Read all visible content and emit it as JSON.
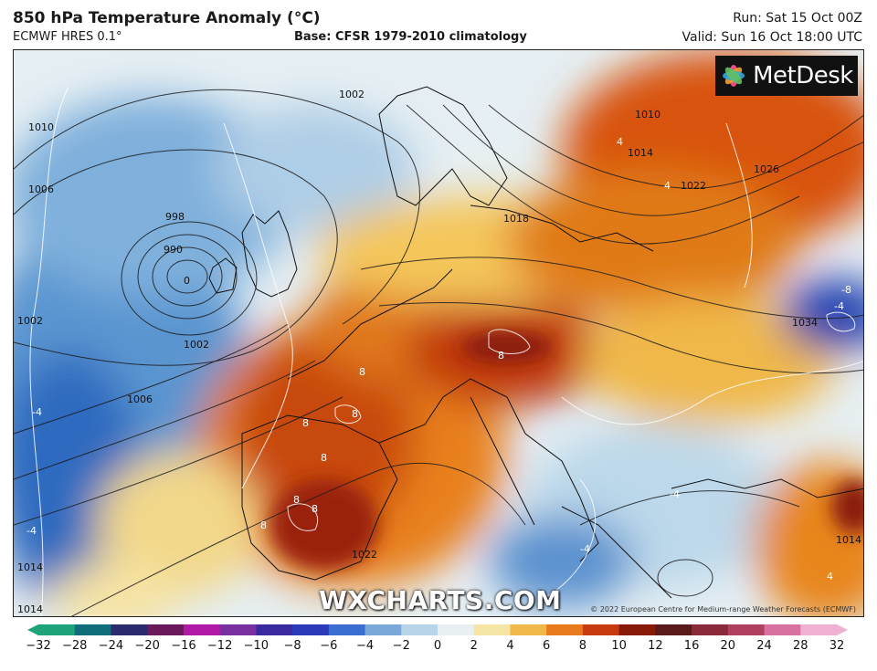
{
  "header": {
    "title": "850 hPa Temperature Anomaly (°C)",
    "model": "ECMWF HRES 0.1°",
    "base": "Base: CFSR 1979-2010 climatology",
    "run": "Run: Sat 15 Oct 00Z",
    "valid": "Valid: Sun 16 Oct 18:00 UTC"
  },
  "branding": {
    "logo_text": "MetDesk",
    "watermark": "WXCHARTS.COM",
    "copyright": "© 2022 European Centre for Medium-range Weather Forecasts (ECMWF)"
  },
  "map": {
    "region": "Europe and North Atlantic",
    "isobar_labels": [
      "998",
      "1002",
      "990",
      "1006",
      "1002",
      "1006",
      "1002",
      "1010",
      "1010",
      "1014",
      "1018",
      "1022",
      "1026",
      "1034",
      "1014",
      "1014",
      "1022",
      "1014"
    ],
    "anomaly_labels": [
      "8",
      "8",
      "8",
      "8",
      "8",
      "8",
      "8",
      "8",
      "-8",
      "-4",
      "-4",
      "-4",
      "-4",
      "-4",
      "4",
      "4",
      "4"
    ],
    "low_center": "0"
  },
  "colorbar": {
    "ticks": [
      "−32",
      "−28",
      "−24",
      "−20",
      "−16",
      "−12",
      "−10",
      "−8",
      "−6",
      "−4",
      "−2",
      "0",
      "2",
      "4",
      "6",
      "8",
      "10",
      "12",
      "16",
      "20",
      "24",
      "28",
      "32"
    ],
    "colors": [
      "#1ea37a",
      "#0f6e7a",
      "#2a2a6e",
      "#6a1a5a",
      "#b11aa6",
      "#7a2fa0",
      "#3a2aa0",
      "#2a3ab8",
      "#3a6ed0",
      "#7aa8d8",
      "#b8d4e8",
      "#e8f0f2",
      "#f6e6a6",
      "#f0b84a",
      "#e87a1e",
      "#c83a10",
      "#8a1a08",
      "#5a1a1a",
      "#8a2a3a",
      "#b04060",
      "#d870a0",
      "#f0b0d0"
    ]
  }
}
